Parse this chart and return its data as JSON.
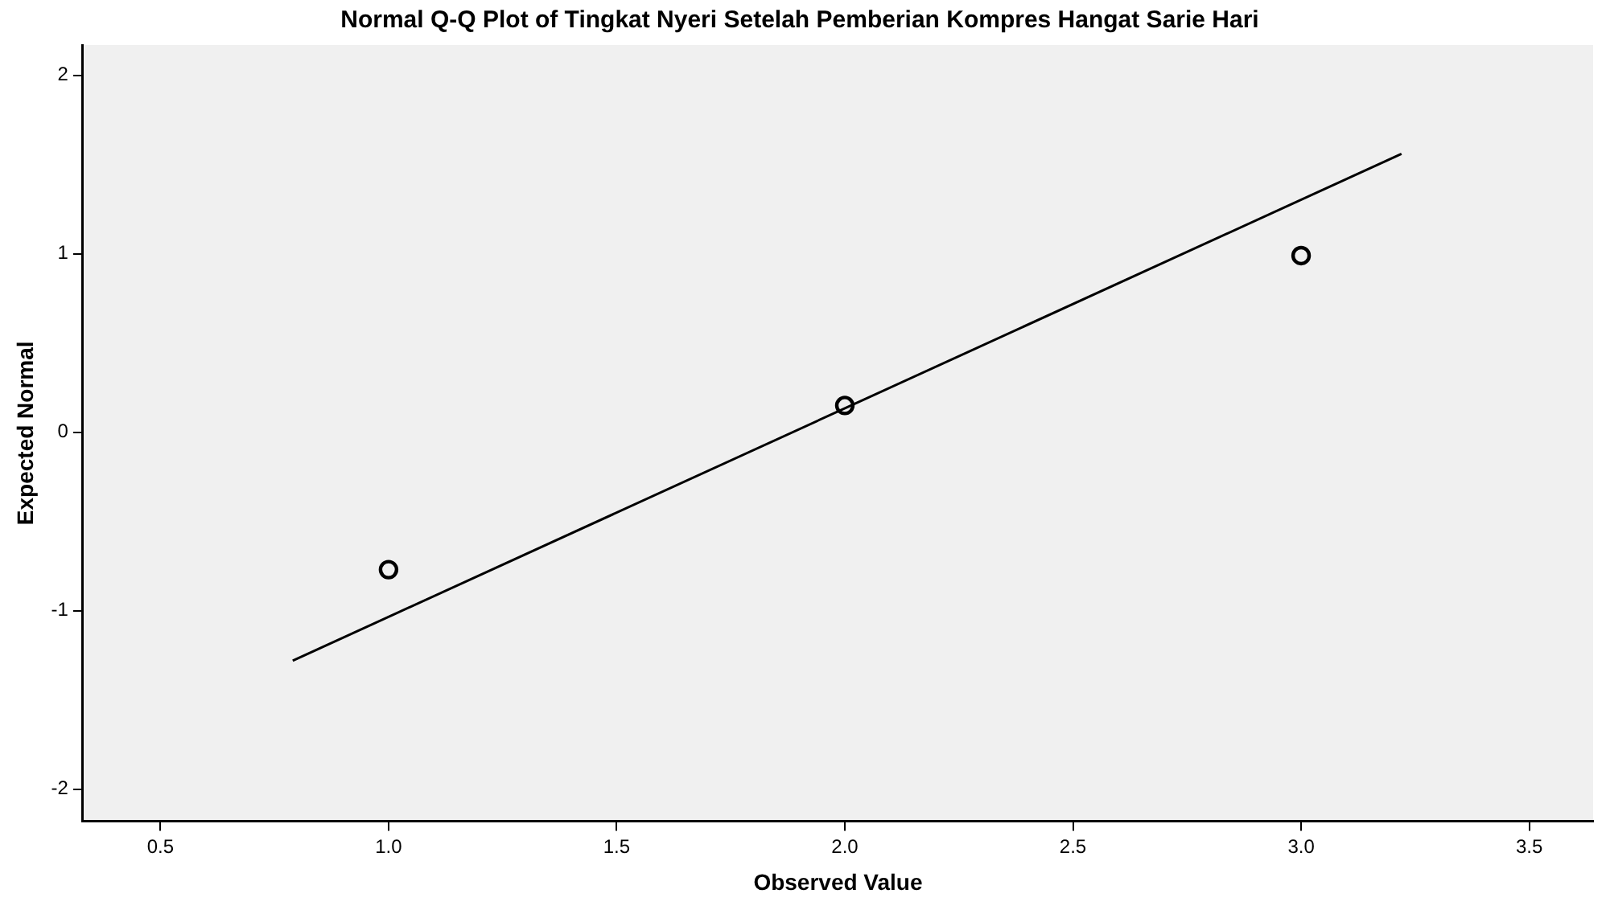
{
  "chart_data": {
    "type": "scatter",
    "title": "Normal Q-Q Plot of Tingkat Nyeri Setelah Pemberian Kompres Hangat Sarie Hari",
    "xlabel": "Observed Value",
    "ylabel": "Expected Normal",
    "xlim": [
      0.33,
      3.64
    ],
    "xticks": [
      {
        "value": 0.5,
        "label": "0.5"
      },
      {
        "value": 1,
        "label": "1.0"
      },
      {
        "value": 1.5,
        "label": "1.5"
      },
      {
        "value": 2,
        "label": "2.0"
      },
      {
        "value": 2.5,
        "label": "2.5"
      },
      {
        "value": 3,
        "label": "3.0"
      },
      {
        "value": 3.5,
        "label": "3.5"
      }
    ],
    "ylim": [
      -2.18,
      2.17
    ],
    "yticks": [
      -2,
      -1,
      0,
      1,
      2
    ],
    "grid": false,
    "legend": false,
    "marker": "circle",
    "series": [
      {
        "type": "scatter",
        "color": "#000000",
        "x": [
          1,
          2,
          3
        ],
        "values": [
          -0.77,
          0.15,
          0.99
        ]
      },
      {
        "type": "line",
        "color": "#000000",
        "x": [
          0.79,
          3.22
        ],
        "values": [
          -1.28,
          1.56
        ],
        "marker": "none",
        "line_style": "solid"
      }
    ]
  }
}
